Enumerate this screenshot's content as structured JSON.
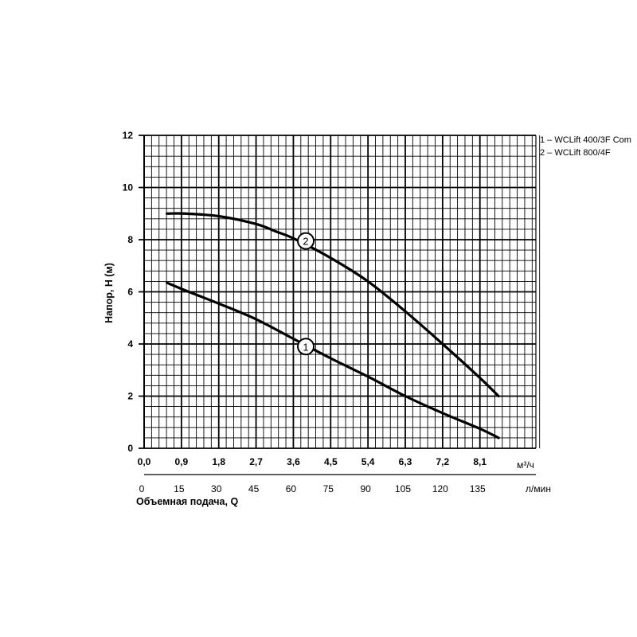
{
  "chart_data": {
    "type": "line",
    "title": "",
    "ylabel": "Напор, H (м)",
    "xlabel": "Объемная подача, Q",
    "x_unit": "м³/ч",
    "x2_unit": "л/мин",
    "xlim": [
      0,
      9.45
    ],
    "ylim": [
      0,
      12
    ],
    "grid": true,
    "x_ticks": [
      "0,0",
      "0,9",
      "1,8",
      "2,7",
      "3,6",
      "4,5",
      "5,4",
      "6,3",
      "7,2",
      "8,1"
    ],
    "x_tick_values": [
      0,
      0.9,
      1.8,
      2.7,
      3.6,
      4.5,
      5.4,
      6.3,
      7.2,
      8.1
    ],
    "x2_ticks": [
      "0",
      "15",
      "30",
      "45",
      "60",
      "75",
      "90",
      "105",
      "120",
      "135"
    ],
    "y_ticks": [
      "0",
      "2",
      "4",
      "6",
      "8",
      "10",
      "12"
    ],
    "y_tick_values": [
      0,
      2,
      4,
      6,
      8,
      10,
      12
    ],
    "legend": [
      "1 – WCLift 400/3F Com",
      "2 – WCLift 800/4F"
    ],
    "series": [
      {
        "marker": "1",
        "marker_at": [
          3.9,
          3.9
        ],
        "x": [
          0.55,
          1.0,
          1.8,
          2.7,
          3.6,
          4.5,
          5.4,
          6.3,
          7.2,
          8.1,
          8.55
        ],
        "y": [
          6.35,
          6.05,
          5.55,
          4.95,
          4.2,
          3.45,
          2.75,
          2.0,
          1.35,
          0.75,
          0.4
        ]
      },
      {
        "marker": "2",
        "marker_at": [
          3.9,
          7.95
        ],
        "x": [
          0.55,
          1.0,
          1.8,
          2.7,
          3.2,
          3.6,
          4.5,
          5.4,
          6.3,
          7.2,
          8.1,
          8.55
        ],
        "y": [
          9.0,
          9.0,
          8.9,
          8.6,
          8.3,
          8.05,
          7.3,
          6.4,
          5.25,
          4.0,
          2.7,
          2.0
        ]
      }
    ]
  }
}
